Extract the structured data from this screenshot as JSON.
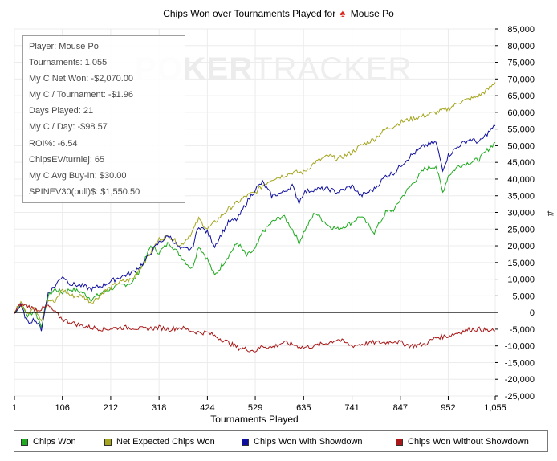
{
  "title": {
    "prefix": "Chips Won over Tournaments Played for",
    "player": "Mouse Po"
  },
  "watermark": {
    "bold": "POKER",
    "thin": "TRACKER"
  },
  "info": [
    "Player: Mouse Po",
    "Tournaments: 1,055",
    "My C Net Won: -$2,070.00",
    "My C / Tournament: -$1.96",
    "Days Played: 21",
    "My C / Day: -$98.57",
    "ROI%: -6.54",
    "ChipsEV/turniej: 65",
    "My C Avg Buy-In: $30.00",
    "SPINEV30(pull)$: $1,550.50"
  ],
  "legend": [
    {
      "label": "Chips Won",
      "color": "#1faa1f"
    },
    {
      "label": "Net Expected Chips Won",
      "color": "#a5a51e"
    },
    {
      "label": "Chips Won With Showdown",
      "color": "#10109e"
    },
    {
      "label": "Chips Won Without Showdown",
      "color": "#a81818"
    }
  ],
  "chart_data": {
    "type": "line",
    "title": "Chips Won over Tournaments Played for Mouse Po",
    "xlabel": "Tournaments Played",
    "ylabel": "#",
    "xlim": [
      1,
      1055
    ],
    "ylim": [
      -25000,
      85000
    ],
    "xticks": [
      1,
      106,
      212,
      318,
      424,
      529,
      635,
      741,
      847,
      952,
      1055
    ],
    "xtick_labels": [
      "1",
      "106",
      "212",
      "318",
      "424",
      "529",
      "635",
      "741",
      "847",
      "952",
      "1,055"
    ],
    "yticks": [
      85000,
      80000,
      75000,
      70000,
      65000,
      60000,
      55000,
      50000,
      45000,
      40000,
      35000,
      30000,
      25000,
      20000,
      15000,
      10000,
      5000,
      0,
      -5000,
      -10000,
      -15000,
      -20000,
      -25000
    ],
    "ytick_labels": [
      "85,000",
      "80,000",
      "75,000",
      "70,000",
      "65,000",
      "60,000",
      "55,000",
      "50,000",
      "45,000",
      "40,000",
      "35,000",
      "30,000",
      "25,000",
      "20,000",
      "15,000",
      "10,000",
      "5,000",
      "0",
      "-5,000",
      "-10,000",
      "-15,000",
      "-20,000",
      "-25,000"
    ],
    "y_axis_side": "right",
    "series": [
      {
        "name": "Chips Won",
        "color": "#1faa1f",
        "points": [
          [
            1,
            0
          ],
          [
            15,
            2500
          ],
          [
            30,
            -1000
          ],
          [
            45,
            500
          ],
          [
            60,
            -4000
          ],
          [
            75,
            5000
          ],
          [
            90,
            7000
          ],
          [
            106,
            6000
          ],
          [
            125,
            7000
          ],
          [
            150,
            6000
          ],
          [
            170,
            4000
          ],
          [
            200,
            6500
          ],
          [
            230,
            8000
          ],
          [
            260,
            9000
          ],
          [
            285,
            15000
          ],
          [
            300,
            20000
          ],
          [
            318,
            18000
          ],
          [
            340,
            21000
          ],
          [
            365,
            17000
          ],
          [
            390,
            13000
          ],
          [
            405,
            20000
          ],
          [
            424,
            16000
          ],
          [
            440,
            11000
          ],
          [
            470,
            17000
          ],
          [
            490,
            21000
          ],
          [
            510,
            17000
          ],
          [
            529,
            19000
          ],
          [
            545,
            24000
          ],
          [
            565,
            27000
          ],
          [
            590,
            29000
          ],
          [
            610,
            25000
          ],
          [
            625,
            21000
          ],
          [
            635,
            24000
          ],
          [
            660,
            30000
          ],
          [
            690,
            26000
          ],
          [
            710,
            25000
          ],
          [
            741,
            27000
          ],
          [
            760,
            29000
          ],
          [
            790,
            24000
          ],
          [
            815,
            30000
          ],
          [
            835,
            31000
          ],
          [
            847,
            34000
          ],
          [
            870,
            38000
          ],
          [
            900,
            43000
          ],
          [
            925,
            44000
          ],
          [
            940,
            36000
          ],
          [
            952,
            41000
          ],
          [
            975,
            44000
          ],
          [
            1000,
            45000
          ],
          [
            1020,
            46000
          ],
          [
            1040,
            49000
          ],
          [
            1055,
            51000
          ]
        ]
      },
      {
        "name": "Net Expected Chips Won",
        "color": "#a5a51e",
        "points": [
          [
            1,
            0
          ],
          [
            15,
            3000
          ],
          [
            30,
            0
          ],
          [
            45,
            1500
          ],
          [
            60,
            -2000
          ],
          [
            75,
            4000
          ],
          [
            90,
            3000
          ],
          [
            106,
            7000
          ],
          [
            125,
            5000
          ],
          [
            150,
            5000
          ],
          [
            170,
            3000
          ],
          [
            200,
            6500
          ],
          [
            230,
            9000
          ],
          [
            260,
            10000
          ],
          [
            285,
            15000
          ],
          [
            300,
            18000
          ],
          [
            318,
            22000
          ],
          [
            340,
            23000
          ],
          [
            365,
            20000
          ],
          [
            390,
            24000
          ],
          [
            405,
            28000
          ],
          [
            424,
            25000
          ],
          [
            440,
            27000
          ],
          [
            470,
            31000
          ],
          [
            490,
            33000
          ],
          [
            510,
            35000
          ],
          [
            529,
            36000
          ],
          [
            545,
            38000
          ],
          [
            565,
            40000
          ],
          [
            590,
            41000
          ],
          [
            610,
            42000
          ],
          [
            635,
            42000
          ],
          [
            660,
            45000
          ],
          [
            690,
            47000
          ],
          [
            710,
            46000
          ],
          [
            741,
            48000
          ],
          [
            760,
            50000
          ],
          [
            790,
            52000
          ],
          [
            815,
            55000
          ],
          [
            835,
            56000
          ],
          [
            847,
            57000
          ],
          [
            870,
            58000
          ],
          [
            900,
            59000
          ],
          [
            925,
            60000
          ],
          [
            952,
            61000
          ],
          [
            975,
            63000
          ],
          [
            1000,
            64000
          ],
          [
            1020,
            65000
          ],
          [
            1040,
            67000
          ],
          [
            1055,
            69000
          ]
        ]
      },
      {
        "name": "Chips Won With Showdown",
        "color": "#10109e",
        "points": [
          [
            1,
            0
          ],
          [
            15,
            2000
          ],
          [
            30,
            -3000
          ],
          [
            45,
            -2000
          ],
          [
            60,
            -5000
          ],
          [
            75,
            6000
          ],
          [
            90,
            8000
          ],
          [
            106,
            11000
          ],
          [
            125,
            8500
          ],
          [
            150,
            8000
          ],
          [
            170,
            7000
          ],
          [
            200,
            8500
          ],
          [
            230,
            10500
          ],
          [
            260,
            12000
          ],
          [
            285,
            15000
          ],
          [
            300,
            18000
          ],
          [
            318,
            21000
          ],
          [
            340,
            23000
          ],
          [
            365,
            19000
          ],
          [
            390,
            19000
          ],
          [
            405,
            26000
          ],
          [
            424,
            24000
          ],
          [
            440,
            20000
          ],
          [
            470,
            27000
          ],
          [
            490,
            28000
          ],
          [
            510,
            33000
          ],
          [
            529,
            37000
          ],
          [
            545,
            39000
          ],
          [
            565,
            35000
          ],
          [
            590,
            36000
          ],
          [
            610,
            38000
          ],
          [
            625,
            33000
          ],
          [
            635,
            36000
          ],
          [
            660,
            37000
          ],
          [
            690,
            37000
          ],
          [
            710,
            36000
          ],
          [
            741,
            38000
          ],
          [
            760,
            35000
          ],
          [
            790,
            37000
          ],
          [
            815,
            41000
          ],
          [
            835,
            42000
          ],
          [
            847,
            44000
          ],
          [
            870,
            47000
          ],
          [
            900,
            50000
          ],
          [
            925,
            51000
          ],
          [
            940,
            43000
          ],
          [
            952,
            47000
          ],
          [
            975,
            50000
          ],
          [
            1000,
            52000
          ],
          [
            1020,
            51000
          ],
          [
            1040,
            54000
          ],
          [
            1055,
            56000
          ]
        ]
      },
      {
        "name": "Chips Won Without Showdown",
        "color": "#a81818",
        "points": [
          [
            1,
            0
          ],
          [
            15,
            2500
          ],
          [
            30,
            2000
          ],
          [
            45,
            1000
          ],
          [
            60,
            1000
          ],
          [
            75,
            2000
          ],
          [
            90,
            0
          ],
          [
            106,
            -2000
          ],
          [
            125,
            -3000
          ],
          [
            150,
            -4000
          ],
          [
            170,
            -4500
          ],
          [
            200,
            -5000
          ],
          [
            230,
            -4500
          ],
          [
            260,
            -4500
          ],
          [
            285,
            -5000
          ],
          [
            318,
            -4500
          ],
          [
            340,
            -5000
          ],
          [
            365,
            -4500
          ],
          [
            390,
            -5500
          ],
          [
            405,
            -6000
          ],
          [
            424,
            -6000
          ],
          [
            440,
            -7000
          ],
          [
            470,
            -9000
          ],
          [
            490,
            -10500
          ],
          [
            510,
            -11000
          ],
          [
            529,
            -11500
          ],
          [
            545,
            -10000
          ],
          [
            565,
            -10500
          ],
          [
            590,
            -9000
          ],
          [
            610,
            -9500
          ],
          [
            635,
            -10500
          ],
          [
            660,
            -10000
          ],
          [
            690,
            -9000
          ],
          [
            710,
            -8000
          ],
          [
            741,
            -10000
          ],
          [
            760,
            -9500
          ],
          [
            790,
            -9000
          ],
          [
            815,
            -9000
          ],
          [
            835,
            -8500
          ],
          [
            847,
            -9000
          ],
          [
            870,
            -10000
          ],
          [
            900,
            -9500
          ],
          [
            925,
            -7500
          ],
          [
            952,
            -7000
          ],
          [
            975,
            -6000
          ],
          [
            1000,
            -5000
          ],
          [
            1020,
            -5000
          ],
          [
            1040,
            -5500
          ],
          [
            1055,
            -5500
          ]
        ]
      }
    ]
  }
}
